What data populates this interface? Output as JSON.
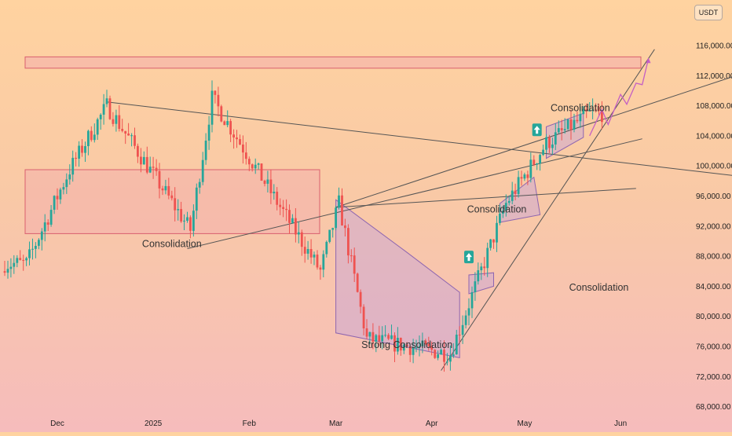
{
  "currency": "USDT",
  "colors": {
    "up": "#26a69a",
    "down": "#ef5350",
    "line": "#555555",
    "box_fill": "#f2a7b0",
    "box_stroke": "#d9606e",
    "pattern_fill": "#c9a6d6",
    "pattern_stroke": "#8e66b0",
    "projection": "#c45fc4"
  },
  "chart_data": {
    "type": "candlestick",
    "y_axis": {
      "side": "right",
      "range": [
        67000,
        120000
      ],
      "ticks": [
        "116,000.00",
        "112,000.00",
        "108,000.00",
        "104,000.00",
        "100,000.00",
        "96,000.00",
        "92,000.00",
        "88,000.00",
        "84,000.00",
        "80,000.00",
        "76,000.00",
        "72,000.00",
        "68,000.00"
      ]
    },
    "x_axis": {
      "ticks": [
        "Dec",
        "2025",
        "Feb",
        "Mar",
        "Apr",
        "May",
        "Jun"
      ]
    },
    "annotations": [
      "Consolidation",
      "Strong Consolidation",
      "Consolidation",
      "Consolidation",
      "Consolidation"
    ],
    "key_points": [
      {
        "date": "2024-11-21",
        "price": 87000
      },
      {
        "date": "2024-12-05",
        "price": 99500
      },
      {
        "date": "2024-12-17",
        "price": 108000
      },
      {
        "date": "2025-01-13",
        "price": 91500
      },
      {
        "date": "2025-01-20",
        "price": 109000
      },
      {
        "date": "2025-02-24",
        "price": 86000
      },
      {
        "date": "2025-03-02",
        "price": 95000
      },
      {
        "date": "2025-03-11",
        "price": 77000
      },
      {
        "date": "2025-04-07",
        "price": 75000
      },
      {
        "date": "2025-04-25",
        "price": 95000
      },
      {
        "date": "2025-05-08",
        "price": 103000
      },
      {
        "date": "2025-05-22",
        "price": 107000
      }
    ],
    "resistance_zone": [
      113000,
      114500
    ],
    "pattern": "rising wedge with horizontal consolidation boxes and projected path to 114000"
  }
}
